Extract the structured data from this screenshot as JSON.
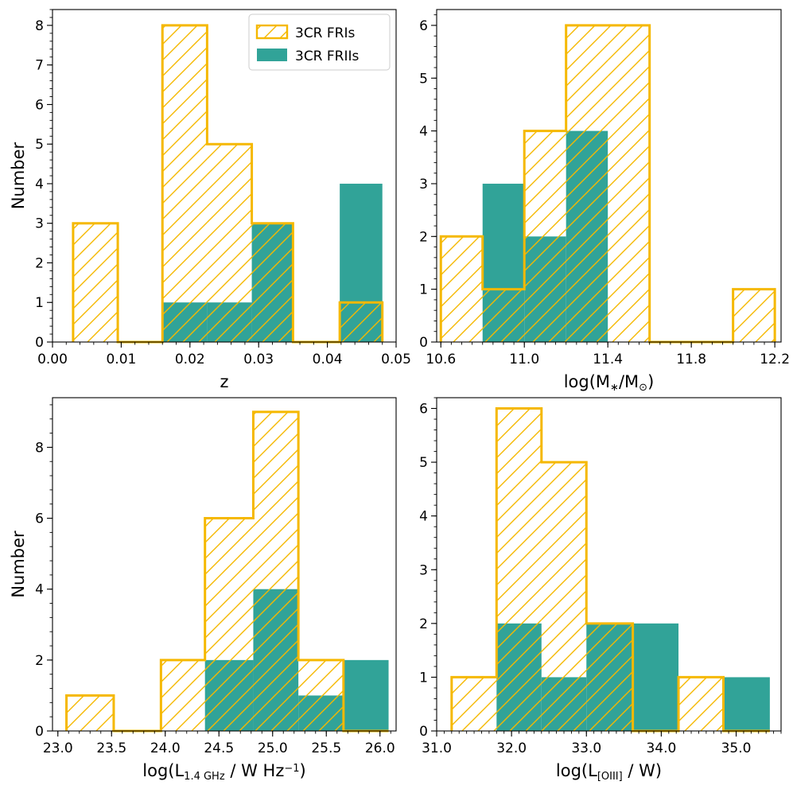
{
  "colors": {
    "fri_edge": "#F5B800",
    "frii_fill": "#31A398"
  },
  "legend": {
    "fri_label": "3CR FRIs",
    "frii_label": "3CR FRIIs"
  },
  "chart_data": [
    {
      "type": "histogram",
      "name": "redshift",
      "xlabel": "z",
      "xlabel_parts": [
        {
          "t": "z"
        }
      ],
      "ylabel": "Number",
      "xlim": [
        0.0,
        0.05
      ],
      "ylim": [
        0,
        8.4
      ],
      "xticks": [
        0.0,
        0.01,
        0.02,
        0.03,
        0.04,
        0.05
      ],
      "xtick_labels": [
        "0.00",
        "0.01",
        "0.02",
        "0.03",
        "0.04",
        "0.05"
      ],
      "x_minor": 0.002,
      "yticks": [
        0,
        1,
        2,
        3,
        4,
        5,
        6,
        7,
        8
      ],
      "ytick_labels": [
        "0",
        "1",
        "2",
        "3",
        "4",
        "5",
        "6",
        "7",
        "8"
      ],
      "y_minor": 0.2,
      "bin_edges": [
        0.003,
        0.0095,
        0.016,
        0.0225,
        0.029,
        0.035,
        0.0418,
        0.048
      ],
      "series": [
        {
          "name": "3CR FRIIs",
          "style": "filled",
          "counts": [
            0,
            0,
            1,
            1,
            3,
            0,
            4
          ]
        },
        {
          "name": "3CR FRIs",
          "style": "hatched",
          "counts": [
            3,
            0,
            8,
            5,
            3,
            0,
            1
          ]
        }
      ],
      "legend": true
    },
    {
      "type": "histogram",
      "name": "stellar_mass",
      "xlabel": "log(M*/M☉)",
      "xlabel_parts": [
        {
          "t": "log(M"
        },
        {
          "t": "∗",
          "sub": true
        },
        {
          "t": "/M"
        },
        {
          "t": "⊙",
          "sub": true
        },
        {
          "t": ")"
        }
      ],
      "ylabel": "",
      "xlim": [
        10.58,
        12.23
      ],
      "ylim": [
        0,
        6.3
      ],
      "xticks": [
        10.6,
        11.0,
        11.4,
        11.8,
        12.2
      ],
      "xtick_labels": [
        "10.6",
        "11.0",
        "11.4",
        "11.8",
        "12.2"
      ],
      "x_minor": 0.05,
      "yticks": [
        0,
        1,
        2,
        3,
        4,
        5,
        6
      ],
      "ytick_labels": [
        "0",
        "1",
        "2",
        "3",
        "4",
        "5",
        "6"
      ],
      "y_minor": 0.2,
      "bin_edges": [
        10.6,
        10.8,
        11.0,
        11.2,
        11.4,
        11.6,
        11.8,
        12.0,
        12.2
      ],
      "series": [
        {
          "name": "3CR FRIIs",
          "style": "filled",
          "counts": [
            0,
            3,
            2,
            4,
            0,
            0,
            0,
            0
          ]
        },
        {
          "name": "3CR FRIs",
          "style": "hatched",
          "counts": [
            2,
            1,
            4,
            6,
            6,
            0,
            0,
            1
          ]
        }
      ],
      "legend": false
    },
    {
      "type": "histogram",
      "name": "radio_luminosity",
      "xlabel": "log(L1.4GHz / W Hz^-1)",
      "xlabel_parts": [
        {
          "t": "log(L"
        },
        {
          "t": "1.4 GHz",
          "sub": true
        },
        {
          "t": " / W Hz"
        },
        {
          "t": "−1",
          "sup": true
        },
        {
          "t": ")"
        }
      ],
      "ylabel": "Number",
      "xlim": [
        22.95,
        26.15
      ],
      "ylim": [
        0,
        9.4
      ],
      "xticks": [
        23.0,
        23.5,
        24.0,
        24.5,
        25.0,
        25.5,
        26.0
      ],
      "xtick_labels": [
        "23.0",
        "23.5",
        "24.0",
        "24.5",
        "25.0",
        "25.5",
        "26.0"
      ],
      "x_minor": 0.1,
      "yticks": [
        0,
        2,
        4,
        6,
        8
      ],
      "ytick_labels": [
        "0",
        "2",
        "4",
        "6",
        "8"
      ],
      "y_minor": 0.4,
      "bin_edges": [
        23.08,
        23.52,
        23.96,
        24.37,
        24.82,
        25.24,
        25.66,
        26.08
      ],
      "series": [
        {
          "name": "3CR FRIIs",
          "style": "filled",
          "counts": [
            0,
            0,
            0,
            2,
            4,
            1,
            2
          ]
        },
        {
          "name": "3CR FRIs",
          "style": "hatched",
          "counts": [
            1,
            0,
            2,
            6,
            9,
            2,
            0
          ]
        }
      ],
      "legend": false
    },
    {
      "type": "histogram",
      "name": "oiii_luminosity",
      "xlabel": "log(L[OIII] / W)",
      "xlabel_parts": [
        {
          "t": "log(L"
        },
        {
          "t": "[OIII]",
          "sub": true
        },
        {
          "t": " / W)"
        }
      ],
      "ylabel": "",
      "xlim": [
        31.0,
        35.6
      ],
      "ylim": [
        0,
        6.2
      ],
      "xticks": [
        31.0,
        32.0,
        33.0,
        34.0,
        35.0
      ],
      "xtick_labels": [
        "31.0",
        "32.0",
        "33.0",
        "34.0",
        "35.0"
      ],
      "x_minor": 0.1,
      "yticks": [
        0,
        1,
        2,
        3,
        4,
        5,
        6
      ],
      "ytick_labels": [
        "0",
        "1",
        "2",
        "3",
        "4",
        "5",
        "6"
      ],
      "y_minor": 0.2,
      "bin_edges": [
        31.2,
        31.8,
        32.4,
        33.0,
        33.62,
        34.23,
        34.83,
        35.45
      ],
      "series": [
        {
          "name": "3CR FRIIs",
          "style": "filled",
          "counts": [
            0,
            2,
            1,
            2,
            2,
            0,
            1
          ]
        },
        {
          "name": "3CR FRIs",
          "style": "hatched",
          "counts": [
            1,
            6,
            5,
            2,
            0,
            1,
            0
          ]
        }
      ],
      "legend": false
    }
  ]
}
